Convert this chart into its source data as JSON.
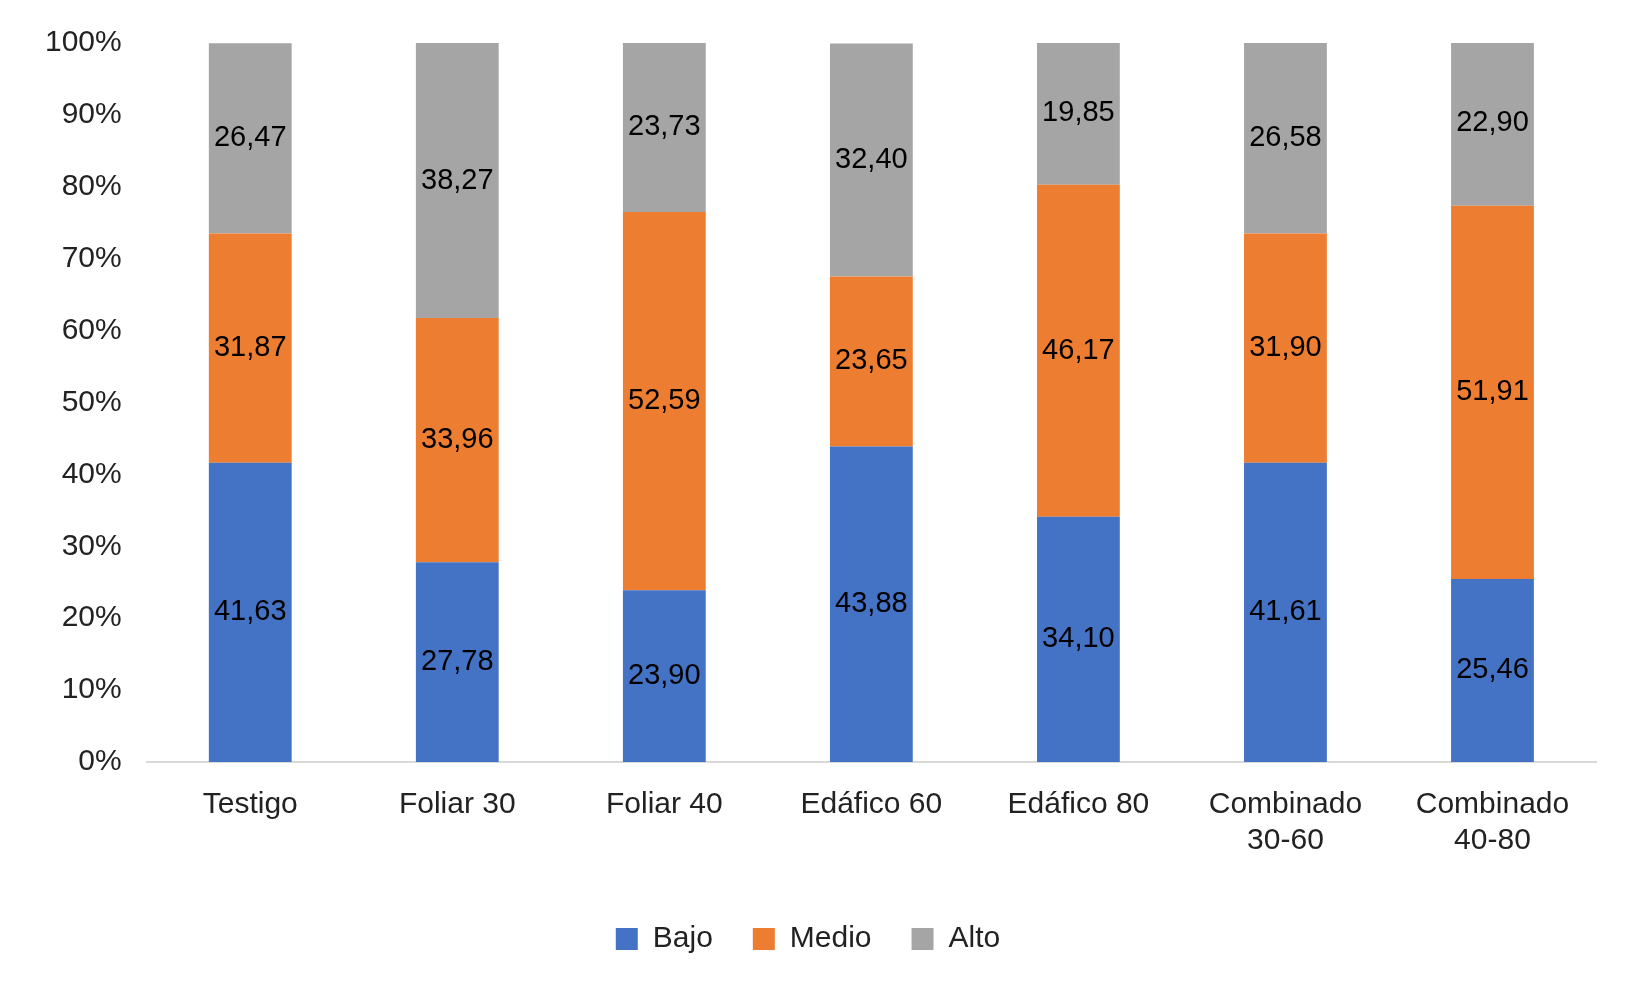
{
  "chart_data": {
    "type": "bar",
    "stacked": true,
    "categories": [
      "Testigo",
      "Foliar 30",
      "Foliar 40",
      "Edáfico 60",
      "Edáfico 80",
      "Combinado 30-60",
      "Combinado 40-80"
    ],
    "series": [
      {
        "name": "Bajo",
        "color": "#4472c4",
        "values": [
          41.63,
          27.78,
          23.9,
          43.88,
          34.1,
          41.61,
          25.46
        ],
        "value_labels": [
          "41,63",
          "27,78",
          "23,90",
          "43,88",
          "34,10",
          "41,61",
          "25,46"
        ]
      },
      {
        "name": "Medio",
        "color": "#ed7d31",
        "values": [
          31.87,
          33.96,
          52.59,
          23.65,
          46.17,
          31.9,
          51.91
        ],
        "value_labels": [
          "31,87",
          "33,96",
          "52,59",
          "23,65",
          "46,17",
          "31,90",
          "51,91"
        ]
      },
      {
        "name": "Alto",
        "color": "#a5a5a5",
        "values": [
          26.47,
          38.27,
          23.73,
          32.4,
          19.85,
          26.58,
          22.9
        ],
        "value_labels": [
          "26,47",
          "38,27",
          "23,73",
          "32,40",
          "19,85",
          "26,58",
          "22,90"
        ]
      }
    ],
    "ylim": [
      0,
      100
    ],
    "yticks": [
      {
        "value": 0,
        "label": "0%"
      },
      {
        "value": 10,
        "label": "10%"
      },
      {
        "value": 20,
        "label": "20%"
      },
      {
        "value": 30,
        "label": "30%"
      },
      {
        "value": 40,
        "label": "40%"
      },
      {
        "value": 50,
        "label": "50%"
      },
      {
        "value": 60,
        "label": "60%"
      },
      {
        "value": 70,
        "label": "70%"
      },
      {
        "value": 80,
        "label": "80%"
      },
      {
        "value": 90,
        "label": "90%"
      },
      {
        "value": 100,
        "label": "100%"
      }
    ],
    "grid": false,
    "legend": "bottom"
  }
}
